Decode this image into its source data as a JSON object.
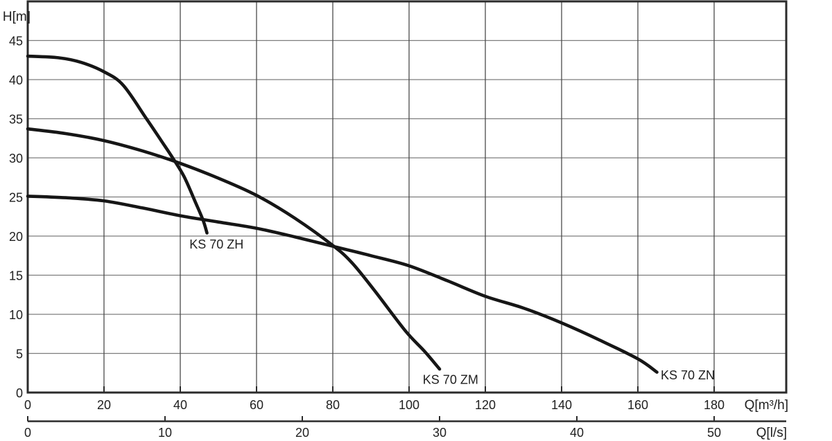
{
  "page": {
    "background": "#ffffff"
  },
  "chart_data": {
    "type": "line",
    "title": "",
    "ylabel": "H[m]",
    "xlabel_primary": "Q[m³/h]",
    "xlabel_secondary": "Q[l/s]",
    "y_ticks": [
      45,
      40,
      35,
      30,
      25,
      20,
      15,
      10,
      5,
      0
    ],
    "x_ticks_primary": [
      0,
      20,
      40,
      60,
      80,
      100,
      120,
      140,
      160,
      180
    ],
    "x_ticks_secondary": [
      0,
      10,
      20,
      30,
      40,
      50
    ],
    "xlim_m3h": [
      0,
      199
    ],
    "ylim_m": [
      0,
      50
    ],
    "secondary_axis_unit_factor": 3.6,
    "grid": true,
    "legend_position": "inline-labels",
    "series": [
      {
        "name": "KS 70 ZH",
        "points": [
          [
            0,
            43
          ],
          [
            8,
            42.8
          ],
          [
            14,
            42.2
          ],
          [
            20,
            41
          ],
          [
            25,
            39.3
          ],
          [
            31,
            35.1
          ],
          [
            35,
            32.2
          ],
          [
            38,
            30
          ],
          [
            41,
            27.6
          ],
          [
            44,
            24.3
          ],
          [
            46,
            22
          ],
          [
            47,
            20.4
          ]
        ],
        "label_anchor": [
          42.4,
          18.4
        ]
      },
      {
        "name": "KS 70 ZM",
        "points": [
          [
            0,
            33.7
          ],
          [
            10,
            33.1
          ],
          [
            20,
            32.2
          ],
          [
            30,
            30.9
          ],
          [
            40,
            29.3
          ],
          [
            50,
            27.4
          ],
          [
            60,
            25.2
          ],
          [
            70,
            22.3
          ],
          [
            80,
            18.8
          ],
          [
            85,
            16.6
          ],
          [
            91,
            13
          ],
          [
            99,
            7.9
          ],
          [
            104,
            5.3
          ],
          [
            108,
            3
          ]
        ],
        "label_anchor": [
          103.6,
          1.1
        ]
      },
      {
        "name": "KS 70 ZN",
        "points": [
          [
            0,
            25.1
          ],
          [
            10,
            24.9
          ],
          [
            20,
            24.5
          ],
          [
            30,
            23.6
          ],
          [
            40,
            22.6
          ],
          [
            50,
            21.8
          ],
          [
            60,
            21
          ],
          [
            70,
            19.9
          ],
          [
            80,
            18.7
          ],
          [
            90,
            17.5
          ],
          [
            100,
            16.2
          ],
          [
            110,
            14.3
          ],
          [
            120,
            12.3
          ],
          [
            130,
            10.8
          ],
          [
            140,
            8.9
          ],
          [
            150,
            6.7
          ],
          [
            160,
            4.3
          ],
          [
            165,
            2.6
          ]
        ],
        "label_anchor": [
          166.0,
          1.7
        ]
      }
    ]
  },
  "colors": {
    "background": "#ffffff",
    "curve": "#161616",
    "axis": "#2b2b2b",
    "grid_horizontal": "#7d7d7d",
    "grid_vertical": "#4a4a4a",
    "text": "#1f1f1f"
  }
}
